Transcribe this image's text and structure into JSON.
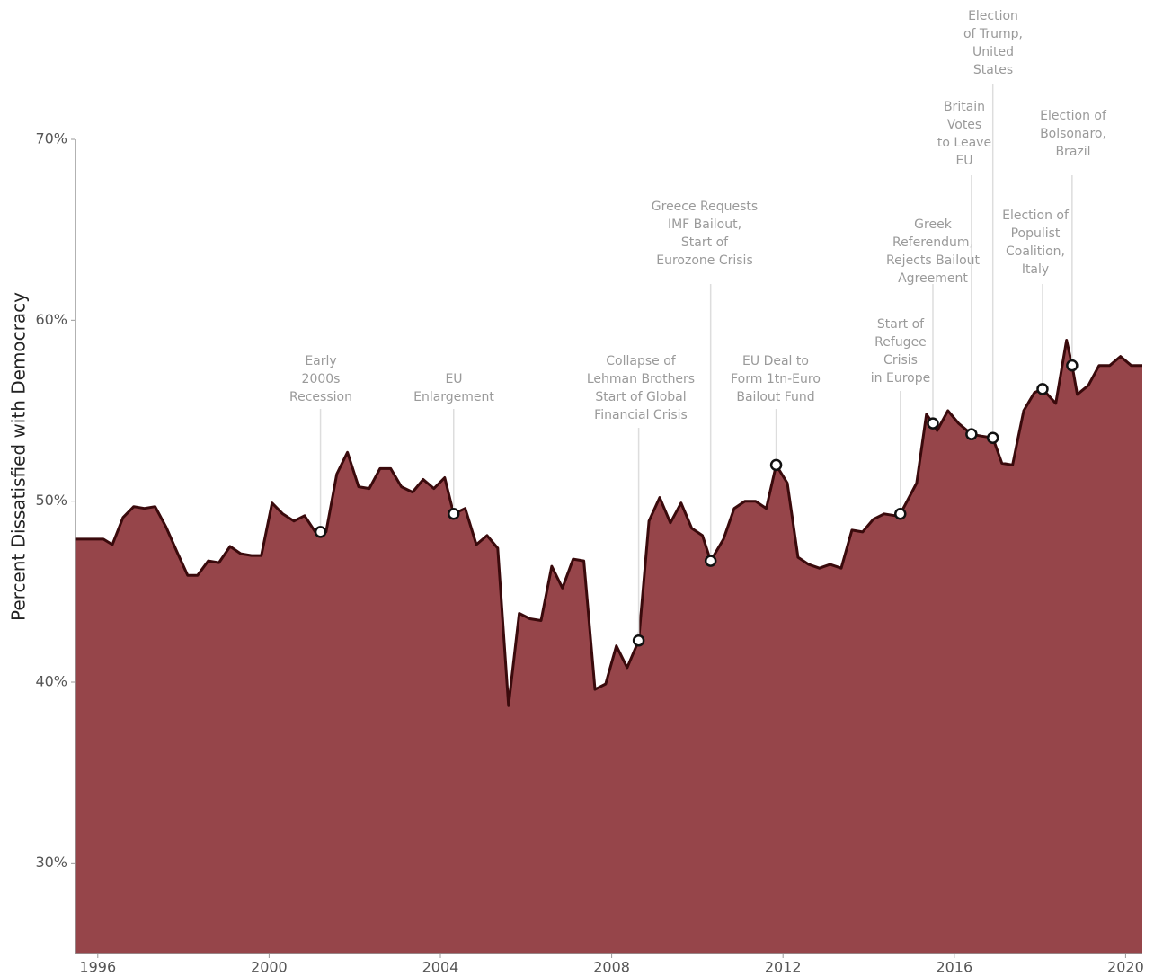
{
  "chart_data": {
    "type": "area",
    "y_label": "Percent Dissatisfied with Democracy",
    "x": [
      1995.48,
      1996.13,
      1996.34,
      1996.59,
      1996.84,
      1997.09,
      1997.34,
      1997.59,
      1997.85,
      1998.1,
      1998.33,
      1998.58,
      1998.83,
      1999.09,
      1999.34,
      1999.59,
      1999.82,
      2000.07,
      2000.32,
      2000.58,
      2000.83,
      2001.08,
      2001.33,
      2001.58,
      2001.83,
      2002.09,
      2002.34,
      2002.59,
      2002.84,
      2003.09,
      2003.35,
      2003.6,
      2003.85,
      2004.1,
      2004.31,
      2004.58,
      2004.84,
      2005.09,
      2005.34,
      2005.59,
      2005.84,
      2006.09,
      2006.35,
      2006.6,
      2006.85,
      2007.1,
      2007.35,
      2007.61,
      2007.86,
      2008.11,
      2008.36,
      2008.63,
      2008.87,
      2009.12,
      2009.37,
      2009.62,
      2009.87,
      2010.12,
      2010.31,
      2010.61,
      2010.86,
      2011.11,
      2011.36,
      2011.61,
      2011.84,
      2012.1,
      2012.35,
      2012.6,
      2012.85,
      2013.1,
      2013.36,
      2013.61,
      2013.86,
      2014.11,
      2014.36,
      2014.62,
      2014.74,
      2015.12,
      2015.35,
      2015.5,
      2015.6,
      2015.85,
      2016.1,
      2016.4,
      2016.63,
      2016.9,
      2017.11,
      2017.36,
      2017.62,
      2017.87,
      2018.06,
      2018.37,
      2018.62,
      2018.75,
      2018.87,
      2019.13,
      2019.38,
      2019.63,
      2019.88,
      2020.13,
      2020.39
    ],
    "series": [
      {
        "name": "Dissatisfied",
        "color": "#96454a",
        "line_color": "#3a0a0c",
        "values": [
          47.9,
          47.9,
          47.6,
          49.1,
          49.7,
          49.6,
          49.7,
          48.6,
          47.2,
          45.9,
          45.9,
          46.7,
          46.6,
          47.5,
          47.1,
          47.0,
          47.0,
          49.9,
          49.3,
          48.9,
          49.2,
          48.3,
          48.3,
          51.5,
          52.7,
          50.8,
          50.7,
          51.8,
          51.8,
          50.8,
          50.5,
          51.2,
          50.7,
          51.3,
          49.3,
          49.6,
          47.6,
          48.1,
          47.4,
          38.7,
          43.8,
          43.5,
          43.4,
          46.4,
          45.2,
          46.8,
          46.7,
          39.6,
          39.9,
          42.0,
          40.8,
          42.3,
          48.9,
          50.2,
          48.8,
          49.9,
          48.5,
          48.1,
          46.7,
          47.9,
          49.6,
          50.0,
          50.0,
          49.6,
          52.0,
          51.0,
          46.9,
          46.5,
          46.3,
          46.5,
          46.3,
          48.4,
          48.3,
          49.0,
          49.3,
          49.2,
          49.3,
          51.0,
          54.8,
          54.3,
          53.9,
          55.0,
          54.3,
          53.7,
          53.6,
          53.5,
          52.1,
          52.0,
          55.0,
          56.0,
          56.2,
          55.4,
          58.9,
          57.5,
          55.9,
          56.4,
          57.5,
          57.5,
          58.0,
          57.5,
          57.5
        ]
      }
    ],
    "xlim": [
      1995.48,
      2020.39
    ],
    "ylim": [
      25,
      70
    ],
    "xticks": [
      1996,
      2000,
      2004,
      2008,
      2012,
      2016,
      2020
    ],
    "yticks": [
      {
        "value": 30,
        "label": "30%"
      },
      {
        "value": 40,
        "label": "40%"
      },
      {
        "value": 50,
        "label": "50%"
      },
      {
        "value": 60,
        "label": "60%"
      },
      {
        "value": 70,
        "label": "70%"
      }
    ],
    "annotations": [
      {
        "x": 2001.2,
        "y": 48.3,
        "lines": [
          "Early",
          "2000s",
          "Recession"
        ]
      },
      {
        "x": 2004.31,
        "y": 49.3,
        "lines": [
          "EU",
          "Enlargement"
        ]
      },
      {
        "x": 2008.63,
        "y": 42.3,
        "lines": [
          "Collapse of",
          "Lehman Brothers",
          "Start of Global",
          "Financial Crisis"
        ]
      },
      {
        "x": 2010.31,
        "y": 46.7,
        "lines": [
          "Greece Requests",
          "IMF Bailout,",
          "Start of",
          "Eurozone Crisis"
        ]
      },
      {
        "x": 2011.84,
        "y": 52.0,
        "lines": [
          "EU Deal to",
          "Form 1tn-Euro",
          "Bailout Fund"
        ]
      },
      {
        "x": 2014.74,
        "y": 49.3,
        "lines": [
          "Start of",
          "Refugee",
          "Crisis",
          "in Europe"
        ]
      },
      {
        "x": 2015.5,
        "y": 54.3,
        "lines": [
          "Greek",
          "Referendum,",
          "Rejects Bailout",
          "Agreement"
        ]
      },
      {
        "x": 2016.4,
        "y": 53.7,
        "lines": [
          "Britain",
          "Votes",
          "to Leave",
          "EU"
        ]
      },
      {
        "x": 2016.9,
        "y": 53.5,
        "lines": [
          "Election",
          "of Trump,",
          "United",
          "States"
        ]
      },
      {
        "x": 2018.06,
        "y": 56.2,
        "lines": [
          "Election of",
          "Populist",
          "Coalition,",
          "Italy"
        ]
      },
      {
        "x": 2018.75,
        "y": 57.5,
        "lines": [
          "Election of",
          "Bolsonaro,",
          "Brazil"
        ]
      }
    ]
  }
}
